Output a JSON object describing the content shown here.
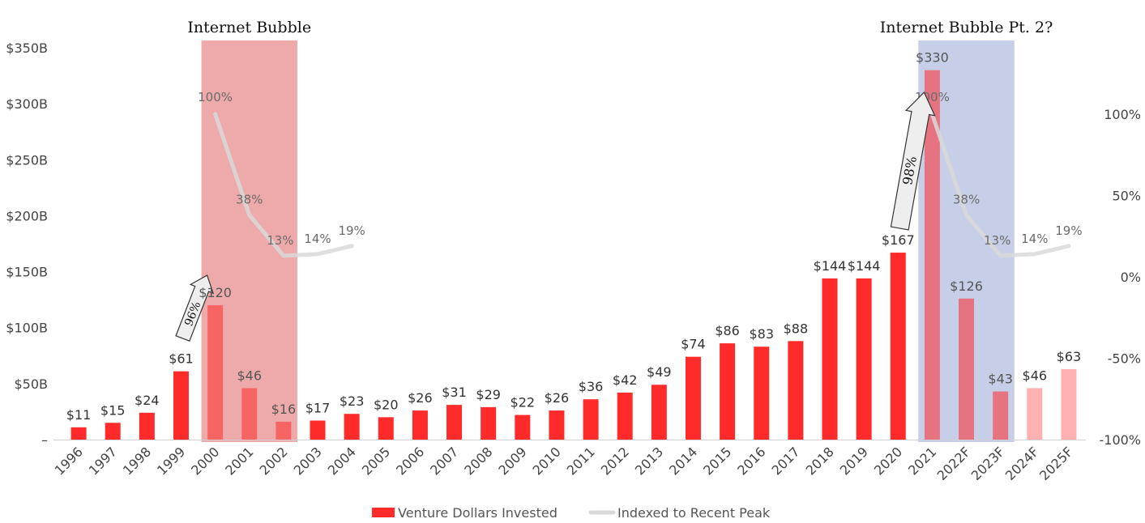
{
  "chart_data": {
    "type": "bar",
    "categories": [
      "1996",
      "1997",
      "1998",
      "1999",
      "2000",
      "2001",
      "2002",
      "2003",
      "2004",
      "2005",
      "2006",
      "2007",
      "2008",
      "2009",
      "2010",
      "2011",
      "2012",
      "2013",
      "2014",
      "2015",
      "2016",
      "2017",
      "2018",
      "2019",
      "2020",
      "2021",
      "2022F",
      "2023F",
      "2024F",
      "2025F"
    ],
    "series": [
      {
        "name": "Venture Dollars Invested",
        "values": [
          11,
          15,
          24,
          61,
          120,
          46,
          16,
          17,
          23,
          20,
          26,
          31,
          29,
          22,
          26,
          36,
          42,
          49,
          74,
          86,
          83,
          88,
          144,
          144,
          167,
          330,
          126,
          43,
          46,
          63
        ],
        "labels": [
          "$11",
          "$15",
          "$24",
          "$61",
          "$120",
          "$46",
          "$16",
          "$17",
          "$23",
          "$20",
          "$26",
          "$31",
          "$29",
          "$22",
          "$26",
          "$36",
          "$42",
          "$49",
          "$74",
          "$86",
          "$83",
          "$88",
          "$144",
          "$144",
          "$167",
          "$330",
          "$126",
          "$43",
          "$46",
          "$63"
        ],
        "color": "#ff2a2a",
        "forecast_color": "#ffb0b0"
      },
      {
        "name": "Indexed to Recent Peak",
        "type": "line",
        "color": "#d9d9d9",
        "segments": [
          {
            "x": [
              "2000",
              "2001",
              "2002",
              "2003",
              "2004"
            ],
            "values": [
              100,
              38,
              13,
              14,
              19
            ],
            "labels": [
              "100%",
              "38%",
              "13%",
              "14%",
              "19%"
            ]
          },
          {
            "x": [
              "2021",
              "2022F",
              "2023F",
              "2024F",
              "2025F"
            ],
            "values": [
              100,
              38,
              13,
              14,
              19
            ],
            "labels": [
              "100%",
              "38%",
              "13%",
              "14%",
              "19%"
            ]
          }
        ]
      }
    ],
    "ylim": [
      0,
      350
    ],
    "y_ticks": [
      0,
      50,
      100,
      150,
      200,
      250,
      300,
      350
    ],
    "y_tick_labels": [
      "–",
      "$50B",
      "$100B",
      "$150B",
      "$200B",
      "$250B",
      "$300B",
      "$350B"
    ],
    "y2lim": [
      -100,
      140
    ],
    "y2_ticks": [
      -100,
      -50,
      0,
      50,
      100
    ],
    "y2_tick_labels": [
      "-100%",
      "-50%",
      "0%",
      "50%",
      "100%"
    ],
    "highlights": [
      {
        "label": "Internet Bubble",
        "from": "2000",
        "to": "2002",
        "color": "#eeaaaa"
      },
      {
        "label": "Internet Bubble Pt. 2?",
        "from": "2021",
        "to": "2023F",
        "color": "#c7cfe8"
      }
    ],
    "arrows": [
      {
        "label": "96%",
        "from": "1999",
        "to": "2000"
      },
      {
        "label": "98%",
        "from": "2020",
        "to": "2021"
      }
    ],
    "legend": {
      "position": "bottom",
      "items": [
        "Venture Dollars Invested",
        "Indexed to Recent Peak"
      ]
    },
    "grid": false
  }
}
